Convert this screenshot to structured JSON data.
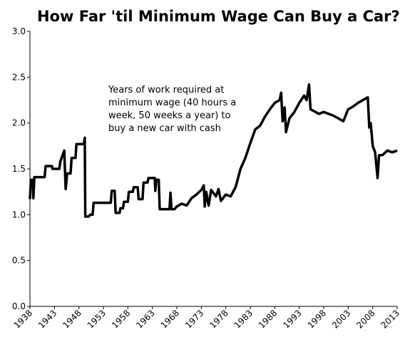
{
  "chart_data": {
    "type": "line",
    "title": "How Far 'til Minimum Wage Can Buy a Car?",
    "annotation": [
      "Years of work required at",
      "minimum wage (40 hours a",
      "week, 50 weeks a year) to",
      "buy a new car with cash"
    ],
    "x": [
      1938.0,
      1938.2,
      1938.6,
      1938.7,
      1938.9,
      1941,
      1941.2,
      1942.5,
      1942.6,
      1944,
      1944.2,
      1945.0,
      1945.3,
      1945.6,
      1946.3,
      1946.5,
      1947.3,
      1947.5,
      1949.0,
      1949.2,
      1949.3,
      1950,
      1950.3,
      1950.8,
      1951,
      1954.5,
      1954.7,
      1955.3,
      1955.5,
      1956.3,
      1956.5,
      1957,
      1957.2,
      1958,
      1958.2,
      1959,
      1959.2,
      1960,
      1960.2,
      1961,
      1961.2,
      1962,
      1962.2,
      1963.5,
      1963.6,
      1963.8,
      1964.3,
      1964.5,
      1966.5,
      1966.7,
      1966.9,
      1967.5,
      1968,
      1969,
      1970,
      1971,
      1972,
      1973,
      1973.5,
      1973.7,
      1974,
      1974.5,
      1975,
      1976,
      1976.5,
      1977,
      1978,
      1979,
      1980,
      1981,
      1982,
      1983,
      1984,
      1985,
      1986,
      1987,
      1988,
      1989,
      1989.3,
      1989.6,
      1990,
      1990.3,
      1991,
      1992,
      1993,
      1994,
      1994.5,
      1995,
      1995.3,
      1996,
      1997,
      1998,
      1999,
      2000,
      2001,
      2002,
      2003,
      2004,
      2005,
      2006,
      2007,
      2007.3,
      2007.6,
      2008,
      2008.5,
      2009,
      2009.3,
      2010,
      2011,
      2012,
      2013
    ],
    "series": [
      {
        "color": "#000000",
        "values": [
          1.17,
          1.38,
          1.38,
          1.18,
          1.41,
          1.41,
          1.53,
          1.53,
          1.5,
          1.5,
          1.58,
          1.7,
          1.28,
          1.45,
          1.45,
          1.62,
          1.62,
          1.77,
          1.77,
          1.84,
          0.98,
          0.98,
          1.0,
          1.0,
          1.13,
          1.13,
          1.26,
          1.26,
          1.02,
          1.02,
          1.07,
          1.07,
          1.14,
          1.14,
          1.25,
          1.25,
          1.3,
          1.3,
          1.17,
          1.17,
          1.35,
          1.35,
          1.4,
          1.4,
          1.26,
          1.38,
          1.38,
          1.06,
          1.06,
          1.24,
          1.06,
          1.06,
          1.09,
          1.12,
          1.1,
          1.18,
          1.22,
          1.27,
          1.32,
          1.09,
          1.25,
          1.1,
          1.27,
          1.2,
          1.28,
          1.15,
          1.22,
          1.2,
          1.3,
          1.5,
          1.62,
          1.78,
          1.93,
          1.97,
          2.07,
          2.15,
          2.22,
          2.25,
          2.33,
          2.02,
          2.17,
          1.9,
          2.05,
          2.12,
          2.22,
          2.3,
          2.25,
          2.42,
          2.15,
          2.13,
          2.1,
          2.12,
          2.1,
          2.08,
          2.05,
          2.02,
          2.15,
          2.18,
          2.22,
          2.25,
          2.28,
          1.95,
          2.0,
          1.75,
          1.68,
          1.4,
          1.65,
          1.65,
          1.7,
          1.68,
          1.7
        ]
      }
    ],
    "xlim": [
      1938,
      2013
    ],
    "xticks": [
      1938,
      1943,
      1948,
      1953,
      1958,
      1963,
      1968,
      1973,
      1978,
      1983,
      1988,
      1993,
      1998,
      2003,
      2008,
      2013
    ],
    "ylim": [
      0,
      3
    ],
    "yticks": [
      {
        "value": 0,
        "label": "0.0"
      },
      0.5,
      {
        "value": 1,
        "label": "1.0"
      },
      1.5,
      {
        "value": 2,
        "label": "2.0"
      },
      2.5,
      {
        "value": 3,
        "label": "3.0"
      }
    ],
    "grid": false
  }
}
